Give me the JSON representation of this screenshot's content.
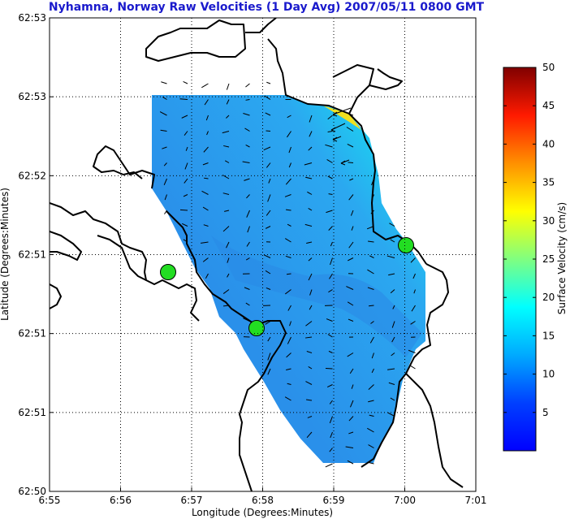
{
  "title": "Nyhamna, Norway Raw Velocities (1 Day Avg) 2007/05/11 0800 GMT",
  "colors": {
    "title": "#1a1acc",
    "site_marker": "#22dd22",
    "coastline": "#000000",
    "grid": "#000000"
  },
  "map": {
    "xlabel": "Longitude (Degrees:Minutes)",
    "ylabel": "Latitude (Degrees:Minutes)",
    "x_ticks": [
      "6:55",
      "6:56",
      "6:57",
      "6:58",
      "6:59",
      "7:00",
      "7:01"
    ],
    "y_ticks": [
      "62:53",
      "62:53",
      "62:52",
      "62:51",
      "62:51",
      "62:51",
      "62:50"
    ],
    "grid": true,
    "sites_count": 3
  },
  "colorbar": {
    "label": "Surface Velocity (cm/s)",
    "ticks": [
      "5",
      "10",
      "15",
      "20",
      "25",
      "30",
      "35",
      "40",
      "45",
      "50"
    ],
    "range": [
      0,
      50
    ],
    "colormap": "jet"
  }
}
